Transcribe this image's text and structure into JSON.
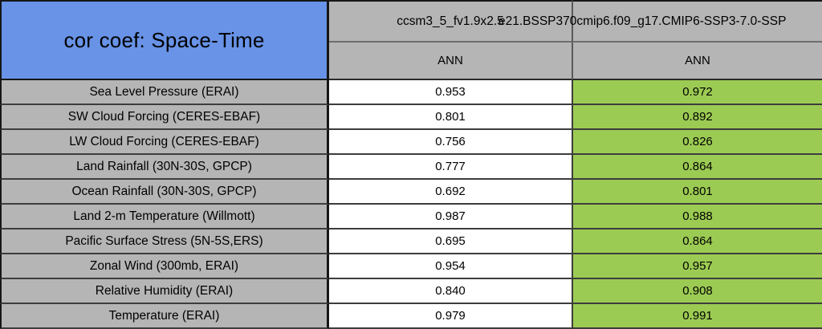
{
  "table": {
    "title": "cor coef: Space-Time",
    "columns": [
      {
        "model": "ccsm3_5_fv1.9x2.5",
        "season": "ANN"
      },
      {
        "model": "e21.BSSP370cmip6.f09_g17.CMIP6-SSP3-7.0-SSP",
        "season": "ANN"
      }
    ],
    "rows": [
      {
        "label": "Sea Level Pressure (ERAI)",
        "values": [
          "0.953",
          "0.972"
        ]
      },
      {
        "label": "SW Cloud Forcing (CERES-EBAF)",
        "values": [
          "0.801",
          "0.892"
        ]
      },
      {
        "label": "LW Cloud Forcing (CERES-EBAF)",
        "values": [
          "0.756",
          "0.826"
        ]
      },
      {
        "label": "Land Rainfall (30N-30S, GPCP)",
        "values": [
          "0.777",
          "0.864"
        ]
      },
      {
        "label": "Ocean Rainfall (30N-30S, GPCP)",
        "values": [
          "0.692",
          "0.801"
        ]
      },
      {
        "label": "Land 2-m Temperature (Willmott)",
        "values": [
          "0.987",
          "0.988"
        ]
      },
      {
        "label": "Pacific Surface Stress (5N-5S,ERS)",
        "values": [
          "0.695",
          "0.864"
        ]
      },
      {
        "label": "Zonal Wind (300mb, ERAI)",
        "values": [
          "0.954",
          "0.957"
        ]
      },
      {
        "label": "Relative Humidity (ERAI)",
        "values": [
          "0.840",
          "0.908"
        ]
      },
      {
        "label": "Temperature (ERAI)",
        "values": [
          "0.979",
          "0.991"
        ]
      }
    ]
  },
  "colors": {
    "title_blue": "#6893E7",
    "header_gray": "#B5B5B5",
    "label_gray": "#B5B5B5",
    "value_green": "#9CCB53",
    "value_white": "#FFFFFF"
  },
  "chart_data": {
    "type": "table",
    "title": "cor coef: Space-Time",
    "row_labels": [
      "Sea Level Pressure (ERAI)",
      "SW Cloud Forcing (CERES-EBAF)",
      "LW Cloud Forcing (CERES-EBAF)",
      "Land Rainfall (30N-30S, GPCP)",
      "Ocean Rainfall (30N-30S, GPCP)",
      "Land 2-m Temperature (Willmott)",
      "Pacific Surface Stress (5N-5S,ERS)",
      "Zonal Wind (300mb, ERAI)",
      "Relative Humidity (ERAI)",
      "Temperature (ERAI)"
    ],
    "series": [
      {
        "name": "ccsm3_5_fv1.9x2.5",
        "season": "ANN",
        "values": [
          0.953,
          0.801,
          0.756,
          0.777,
          0.692,
          0.987,
          0.695,
          0.954,
          0.84,
          0.979
        ]
      },
      {
        "name": "e21.BSSP370cmip6.f09_g17.CMIP6-SSP3-7.0-SSP",
        "season": "ANN",
        "values": [
          0.972,
          0.892,
          0.826,
          0.864,
          0.801,
          0.988,
          0.864,
          0.957,
          0.908,
          0.991
        ]
      }
    ]
  }
}
